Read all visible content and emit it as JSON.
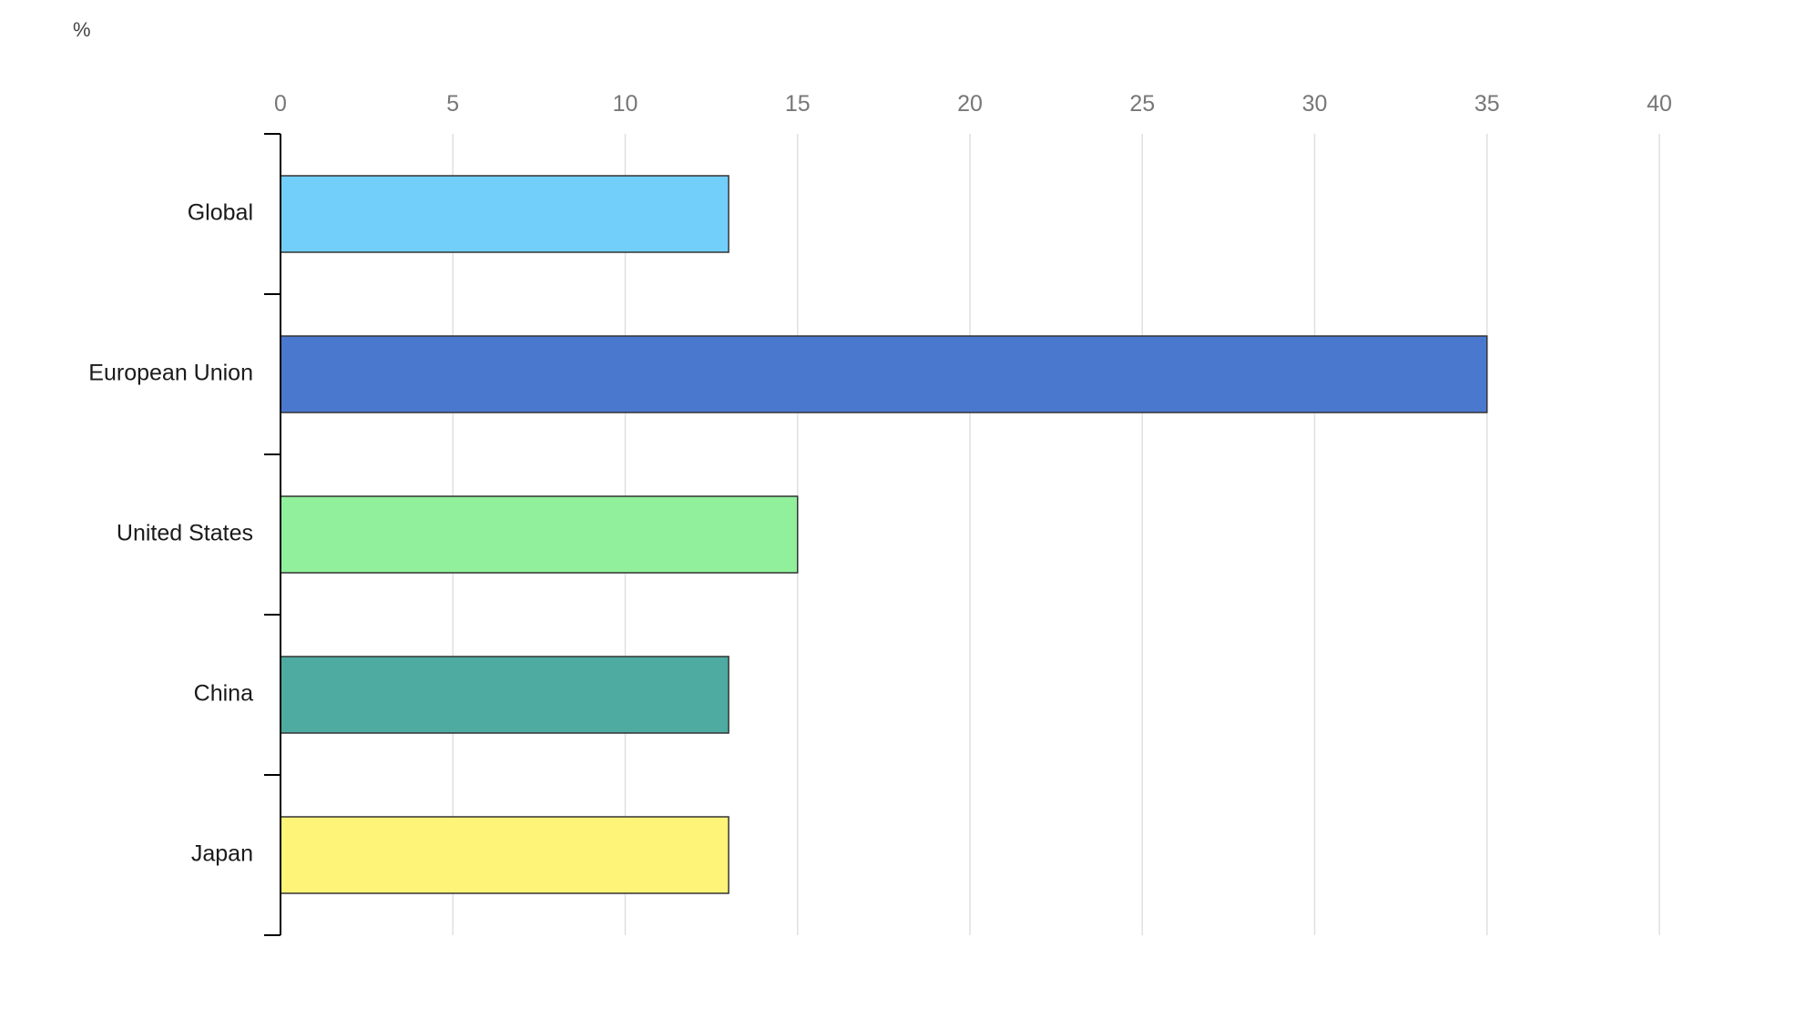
{
  "chart_data": {
    "type": "bar",
    "orientation": "horizontal",
    "unit_label": "%",
    "xlim": [
      0,
      40
    ],
    "x_ticks": [
      0,
      5,
      10,
      15,
      20,
      25,
      30,
      35,
      40
    ],
    "x_tick_labels": [
      "0",
      "5",
      "10",
      "15",
      "20",
      "25",
      "30",
      "35",
      "40"
    ],
    "x_axis_position": "top",
    "grid": true,
    "categories": [
      "Global",
      "European Union",
      "United States",
      "China",
      "Japan"
    ],
    "values": [
      13,
      35,
      15,
      13,
      13
    ],
    "colors": [
      "#72cffa",
      "#4b78cf",
      "#90f09b",
      "#4eaba1",
      "#fdf478"
    ]
  }
}
